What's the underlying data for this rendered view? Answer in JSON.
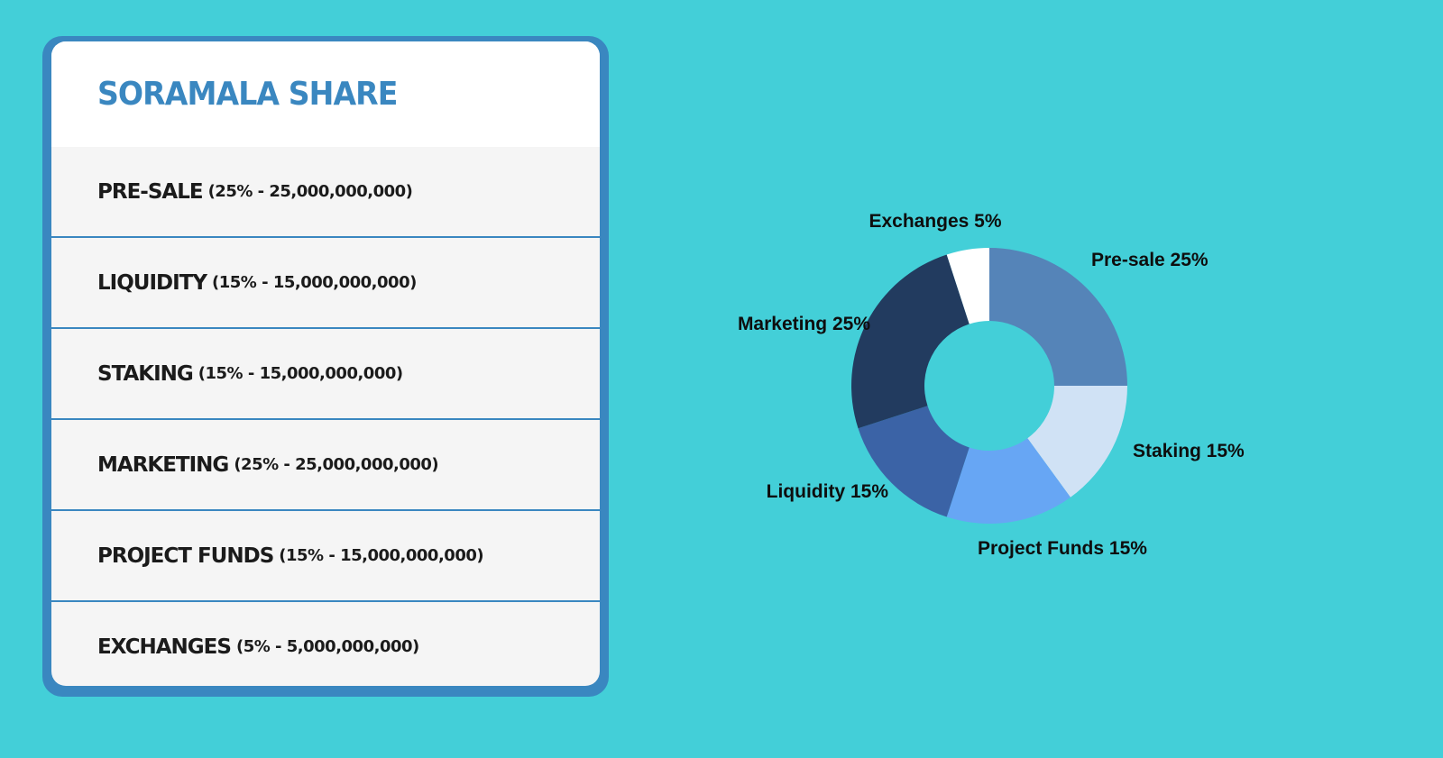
{
  "card": {
    "title": "SORAMALA SHARE",
    "rows": [
      {
        "name": "Pre-sale",
        "detail": "(25% - 25,000,000,000)"
      },
      {
        "name": "Liquidity",
        "detail": "(15% - 15,000,000,000)"
      },
      {
        "name": "Staking",
        "detail": "(15% - 15,000,000,000)"
      },
      {
        "name": "Marketing",
        "detail": "(25% - 25,000,000,000)"
      },
      {
        "name": "Project Funds",
        "detail": "(15% - 15,000,000,000)"
      },
      {
        "name": "Exchanges",
        "detail": "(5% - 5,000,000,000)"
      }
    ]
  },
  "colors": {
    "background": "#43cfd8",
    "card_border": "#3a87c0",
    "title": "#3a87c0"
  },
  "chart_data": {
    "type": "pie",
    "donut": true,
    "title": "",
    "categories": [
      "Pre-sale",
      "Staking",
      "Project Funds",
      "Liquidity",
      "Marketing",
      "Exchanges"
    ],
    "values": [
      25,
      15,
      15,
      15,
      25,
      5
    ],
    "labels": [
      "Pre-sale 25%",
      "Staking 15%",
      "Project Funds 15%",
      "Liquidity 15%",
      "Marketing 25%",
      "Exchanges 5%"
    ],
    "colors": [
      "#5584b8",
      "#d0e2f5",
      "#67a6f4",
      "#3b63a6",
      "#223b5f",
      "#ffffff"
    ],
    "unit": "%",
    "legend": "none"
  }
}
